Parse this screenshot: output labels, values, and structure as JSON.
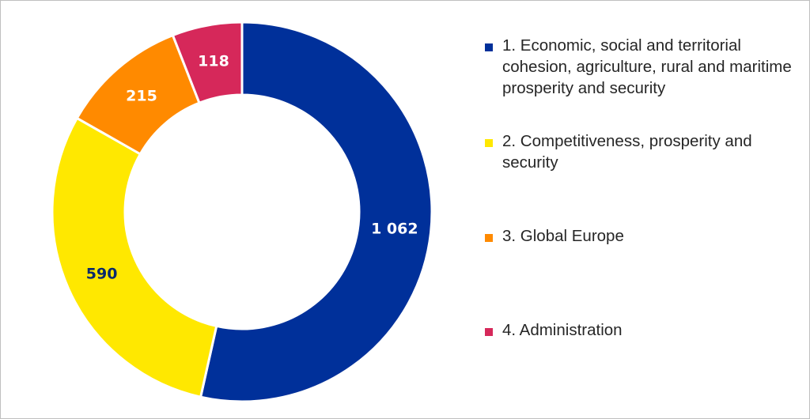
{
  "chart_data": {
    "type": "pie",
    "donut": true,
    "title": "",
    "categories": [
      "1. Economic, social and territorial cohesion, agriculture, rural and maritime prosperity and security",
      "2. Competitiveness, prosperity and security",
      "3. Global Europe",
      "4. Administration"
    ],
    "values": [
      1062,
      590,
      215,
      118
    ],
    "value_labels": [
      "1 062",
      "590",
      "215",
      "118"
    ],
    "colors": [
      "#00309a",
      "#ffe800",
      "#ff8a00",
      "#d6285a"
    ],
    "label_colors": [
      "#ffffff",
      "#0a2a6b",
      "#ffffff",
      "#ffffff"
    ],
    "legend_position": "right"
  }
}
